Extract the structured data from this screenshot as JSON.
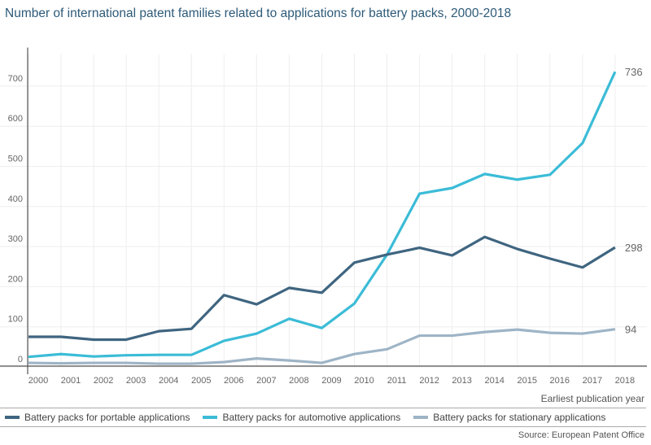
{
  "chart_data": {
    "type": "line",
    "title": "Number of international patent families related to applications for battery packs, 2000-2018",
    "xlabel": "Earliest publication year",
    "ylabel": "",
    "ylim": [
      0,
      780
    ],
    "yticks": [
      0,
      100,
      200,
      300,
      400,
      500,
      600,
      700
    ],
    "grid": true,
    "legend_position": "bottom",
    "categories": [
      "2000",
      "2001",
      "2002",
      "2003",
      "2004",
      "2005",
      "2006",
      "2007",
      "2008",
      "2009",
      "2010",
      "2011",
      "2012",
      "2013",
      "2014",
      "2015",
      "2016",
      "2017",
      "2018"
    ],
    "series": [
      {
        "name": "Battery packs for portable applications",
        "color": "#3f6580",
        "values": [
          75,
          75,
          68,
          68,
          89,
          95,
          179,
          156,
          197,
          185,
          260,
          280,
          297,
          278,
          324,
          294,
          270,
          248,
          298
        ],
        "end_label": "298"
      },
      {
        "name": "Battery packs for automotive applications",
        "color": "#3bbcd7",
        "values": [
          25,
          32,
          26,
          29,
          30,
          30,
          65,
          83,
          120,
          97,
          158,
          280,
          432,
          446,
          481,
          467,
          479,
          558,
          736
        ],
        "end_label": "736"
      },
      {
        "name": "Battery packs for stationary applications",
        "color": "#9eb4c6",
        "values": [
          10,
          9,
          10,
          10,
          8,
          8,
          12,
          21,
          16,
          10,
          32,
          44,
          78,
          78,
          87,
          93,
          85,
          83,
          94
        ],
        "end_label": "94"
      }
    ],
    "source": "Source: European Patent Office"
  }
}
